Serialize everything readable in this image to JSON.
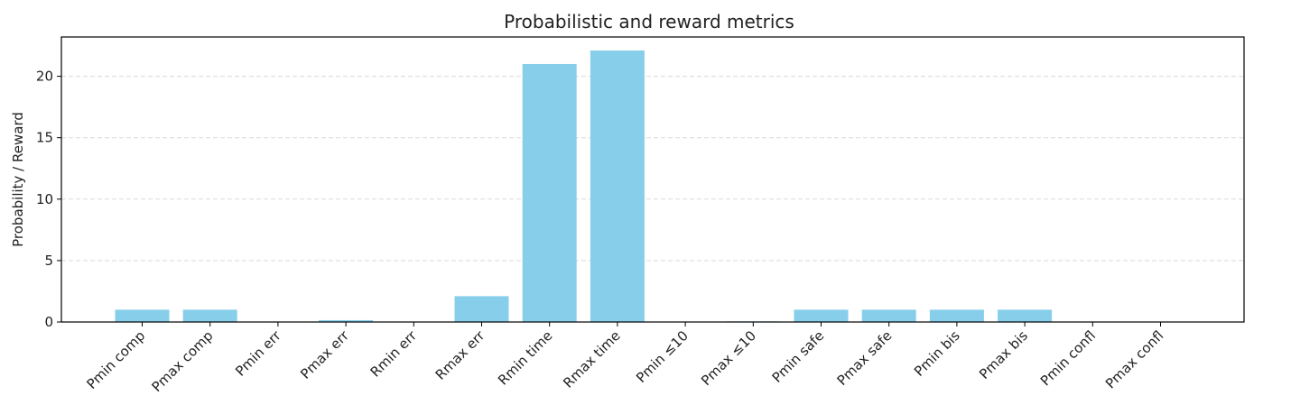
{
  "chart_data": {
    "type": "bar",
    "title": "Probabilistic and reward metrics",
    "xlabel": "",
    "ylabel": "Probability / Reward",
    "categories": [
      "Pmin comp",
      "Pmax comp",
      "Pmin err",
      "Pmax err",
      "Rmin err",
      "Rmax err",
      "Rmin time",
      "Rmax time",
      "Pmin ≤10",
      "Pmax ≤10",
      "Pmin safe",
      "Pmax safe",
      "Pmin bis",
      "Pmax bis",
      "Pmin confl",
      "Pmax confl"
    ],
    "values": [
      1.0,
      1.0,
      0.0,
      0.15,
      0.0,
      2.1,
      21.0,
      22.1,
      0.0,
      0.05,
      1.0,
      1.0,
      1.0,
      1.0,
      0.0,
      0.0
    ],
    "ylim": [
      0,
      23.2
    ],
    "yticks": [
      0,
      5,
      10,
      15,
      20
    ],
    "grid": "horizontal-dashed",
    "bar_color": "#87CEEB"
  }
}
